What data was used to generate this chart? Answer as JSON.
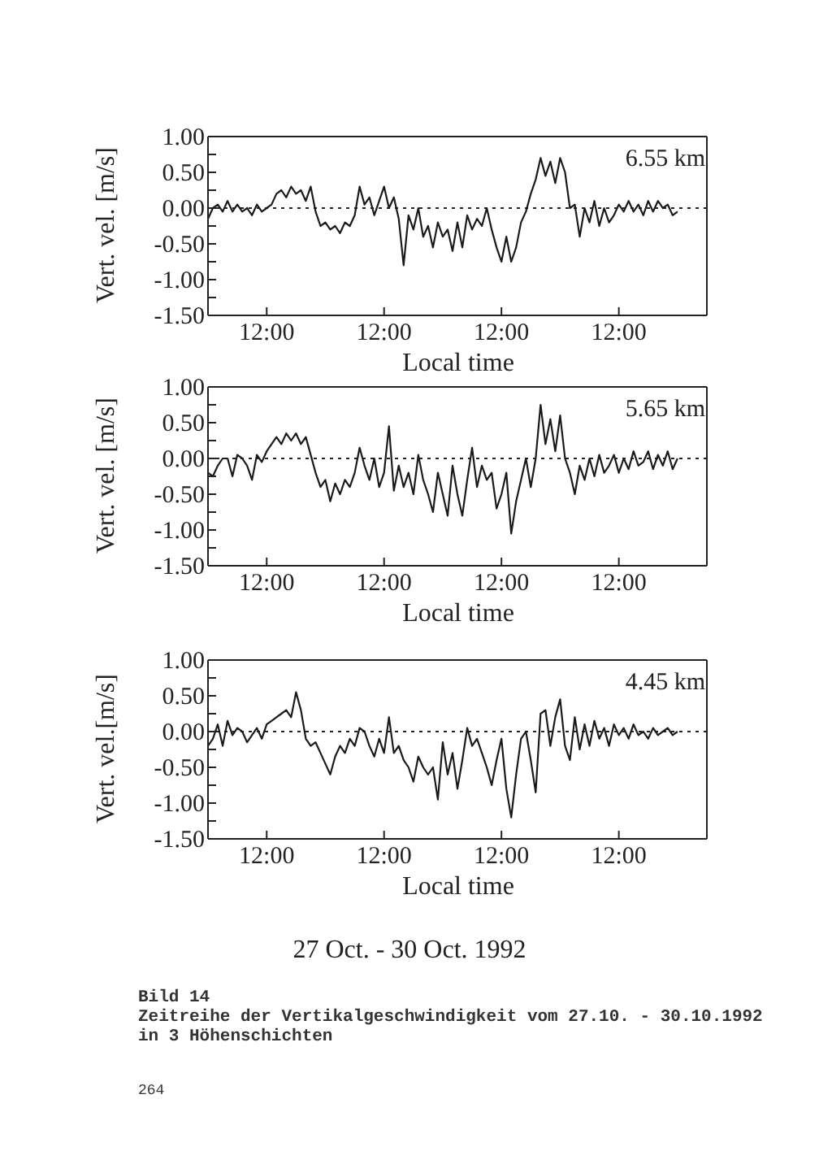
{
  "chart_data": [
    {
      "type": "line",
      "xlabel": "Local time",
      "ylabel": "Vert. vel. [m/s]",
      "annotations": [
        "6.55 km"
      ],
      "categories": [
        null,
        null,
        null,
        null,
        null,
        null,
        null,
        null,
        null,
        null,
        null,
        null,
        "12:00",
        null,
        null,
        null,
        null,
        null,
        null,
        null,
        null,
        null,
        null,
        null,
        null,
        null,
        null,
        null,
        null,
        null,
        null,
        null,
        null,
        null,
        null,
        null,
        "12:00",
        null,
        null,
        null,
        null,
        null,
        null,
        null,
        null,
        null,
        null,
        null,
        null,
        null,
        null,
        null,
        null,
        null,
        null,
        null,
        null,
        null,
        null,
        null,
        "12:00",
        null,
        null,
        null,
        null,
        null,
        null,
        null,
        null,
        null,
        null,
        null,
        null,
        null,
        null,
        null,
        null,
        null,
        null,
        null,
        null,
        null,
        null,
        null,
        "12:00",
        null,
        null,
        null,
        null,
        null,
        null,
        null,
        null,
        null,
        null,
        null,
        null,
        null,
        null,
        null,
        null,
        null,
        null
      ],
      "ylim": [
        -1.5,
        1.0
      ],
      "yticks": [
        {
          "value": 1.0,
          "label": "1.00"
        },
        {
          "value": 0.75,
          "label": null
        },
        {
          "value": 0.5,
          "label": "0.50"
        },
        {
          "value": 0.25,
          "label": null
        },
        {
          "value": 0,
          "label": "0.00"
        },
        {
          "value": -0.25,
          "label": null
        },
        {
          "value": -0.5,
          "label": "-0.50"
        },
        {
          "value": -0.75,
          "label": null
        },
        {
          "value": -1.0,
          "label": "-1.00"
        },
        {
          "value": -1.25,
          "label": null
        },
        {
          "value": -1.5,
          "label": "-1.50"
        }
      ],
      "ref_lines": [
        {
          "axis": "y",
          "value": 0,
          "line_style": "dotted",
          "color": "#222222"
        }
      ],
      "series": [
        {
          "color": "#1a1a1a",
          "values": [
            -0.15,
            0.0,
            0.05,
            -0.05,
            0.1,
            -0.05,
            0.05,
            -0.05,
            0.0,
            -0.1,
            0.05,
            -0.05,
            0.0,
            0.05,
            0.2,
            0.25,
            0.15,
            0.3,
            0.2,
            0.25,
            0.1,
            0.3,
            -0.05,
            -0.25,
            -0.2,
            -0.3,
            -0.25,
            -0.35,
            -0.2,
            -0.25,
            -0.1,
            0.3,
            0.05,
            0.15,
            -0.1,
            0.1,
            0.3,
            0.0,
            0.15,
            -0.15,
            -0.8,
            -0.1,
            -0.3,
            0.0,
            -0.4,
            -0.25,
            -0.55,
            -0.2,
            -0.4,
            -0.3,
            -0.6,
            -0.2,
            -0.55,
            -0.1,
            -0.3,
            -0.15,
            -0.25,
            0.0,
            -0.3,
            -0.55,
            -0.75,
            -0.4,
            -0.75,
            -0.55,
            -0.2,
            -0.05,
            0.2,
            0.4,
            0.7,
            0.45,
            0.65,
            0.35,
            0.7,
            0.5,
            0.0,
            0.05,
            -0.4,
            0.0,
            -0.2,
            0.1,
            -0.25,
            0.0,
            -0.2,
            -0.1,
            0.05,
            -0.05,
            0.1,
            -0.05,
            0.05,
            -0.1,
            0.1,
            -0.05,
            0.1,
            0.0,
            0.05,
            -0.1,
            -0.05,
            null,
            null,
            null,
            null,
            null,
            null
          ]
        }
      ]
    },
    {
      "type": "line",
      "xlabel": "Local time",
      "ylabel": "Vert. vel. [m/s]",
      "annotations": [
        "5.65 km"
      ],
      "categories": [
        null,
        null,
        null,
        null,
        null,
        null,
        null,
        null,
        null,
        null,
        null,
        null,
        "12:00",
        null,
        null,
        null,
        null,
        null,
        null,
        null,
        null,
        null,
        null,
        null,
        null,
        null,
        null,
        null,
        null,
        null,
        null,
        null,
        null,
        null,
        null,
        null,
        "12:00",
        null,
        null,
        null,
        null,
        null,
        null,
        null,
        null,
        null,
        null,
        null,
        null,
        null,
        null,
        null,
        null,
        null,
        null,
        null,
        null,
        null,
        null,
        null,
        "12:00",
        null,
        null,
        null,
        null,
        null,
        null,
        null,
        null,
        null,
        null,
        null,
        null,
        null,
        null,
        null,
        null,
        null,
        null,
        null,
        null,
        null,
        null,
        null,
        "12:00",
        null,
        null,
        null,
        null,
        null,
        null,
        null,
        null,
        null,
        null,
        null,
        null,
        null,
        null,
        null,
        null,
        null,
        null
      ],
      "ylim": [
        -1.5,
        1.0
      ],
      "yticks": [
        {
          "value": 1.0,
          "label": "1.00"
        },
        {
          "value": 0.75,
          "label": null
        },
        {
          "value": 0.5,
          "label": "0.50"
        },
        {
          "value": 0.25,
          "label": null
        },
        {
          "value": 0,
          "label": "0.00"
        },
        {
          "value": -0.25,
          "label": null
        },
        {
          "value": -0.5,
          "label": "-0.50"
        },
        {
          "value": -0.75,
          "label": null
        },
        {
          "value": -1.0,
          "label": "-1.00"
        },
        {
          "value": -1.25,
          "label": null
        },
        {
          "value": -1.5,
          "label": "-1.50"
        }
      ],
      "ref_lines": [
        {
          "axis": "y",
          "value": 0,
          "line_style": "dotted",
          "color": "#222222"
        }
      ],
      "series": [
        {
          "color": "#1a1a1a",
          "values": [
            -0.2,
            -0.25,
            -0.1,
            0.0,
            0.0,
            -0.25,
            0.05,
            0.0,
            -0.1,
            -0.3,
            0.05,
            -0.05,
            0.1,
            0.2,
            0.3,
            0.2,
            0.35,
            0.25,
            0.35,
            0.2,
            0.3,
            0.05,
            -0.2,
            -0.4,
            -0.3,
            -0.6,
            -0.35,
            -0.5,
            -0.3,
            -0.4,
            -0.2,
            0.15,
            -0.1,
            -0.3,
            0.0,
            -0.4,
            -0.2,
            0.45,
            -0.45,
            -0.1,
            -0.4,
            -0.2,
            -0.5,
            0.05,
            -0.3,
            -0.5,
            -0.75,
            -0.2,
            -0.5,
            -0.8,
            -0.1,
            -0.5,
            -0.8,
            -0.3,
            0.15,
            -0.4,
            -0.1,
            -0.3,
            -0.2,
            -0.7,
            -0.5,
            -0.2,
            -1.05,
            -0.6,
            -0.3,
            0.0,
            -0.4,
            0.0,
            0.75,
            0.2,
            0.55,
            0.1,
            0.6,
            0.0,
            -0.2,
            -0.5,
            -0.1,
            -0.3,
            0.0,
            -0.25,
            0.05,
            -0.2,
            -0.1,
            0.05,
            -0.2,
            0.0,
            -0.15,
            0.1,
            -0.1,
            -0.05,
            0.1,
            -0.15,
            0.05,
            -0.1,
            0.1,
            -0.15,
            0.0,
            null,
            null,
            null,
            null,
            null,
            null
          ]
        }
      ]
    },
    {
      "type": "line",
      "xlabel": "Local time",
      "ylabel": "Vert. vel.[m/s]",
      "annotations": [
        "4.45 km",
        "27 Oct. - 30 Oct. 1992",
        "Bild 14",
        "Zeitreihe der Vertikalgeschwindigkeit vom 27.10. - 30.10.1992",
        "in 3 Höhenschichten",
        "264"
      ],
      "categories": [
        null,
        null,
        null,
        null,
        null,
        null,
        null,
        null,
        null,
        null,
        null,
        null,
        "12:00",
        null,
        null,
        null,
        null,
        null,
        null,
        null,
        null,
        null,
        null,
        null,
        null,
        null,
        null,
        null,
        null,
        null,
        null,
        null,
        null,
        null,
        null,
        null,
        "12:00",
        null,
        null,
        null,
        null,
        null,
        null,
        null,
        null,
        null,
        null,
        null,
        null,
        null,
        null,
        null,
        null,
        null,
        null,
        null,
        null,
        null,
        null,
        null,
        "12:00",
        null,
        null,
        null,
        null,
        null,
        null,
        null,
        null,
        null,
        null,
        null,
        null,
        null,
        null,
        null,
        null,
        null,
        null,
        null,
        null,
        null,
        null,
        null,
        "12:00",
        null,
        null,
        null,
        null,
        null,
        null,
        null,
        null,
        null,
        null,
        null,
        null,
        null,
        null,
        null,
        null,
        null,
        null
      ],
      "ylim": [
        -1.5,
        1.0
      ],
      "yticks": [
        {
          "value": 1.0,
          "label": "1.00"
        },
        {
          "value": 0.75,
          "label": null
        },
        {
          "value": 0.5,
          "label": "0.50"
        },
        {
          "value": 0.25,
          "label": null
        },
        {
          "value": 0,
          "label": "0.00"
        },
        {
          "value": -0.25,
          "label": null
        },
        {
          "value": -0.5,
          "label": "-0.50"
        },
        {
          "value": -0.75,
          "label": null
        },
        {
          "value": -1.0,
          "label": "-1.00"
        },
        {
          "value": -1.25,
          "label": null
        },
        {
          "value": -1.5,
          "label": "-1.50"
        }
      ],
      "ref_lines": [
        {
          "axis": "y",
          "value": 0,
          "line_style": "dotted",
          "color": "#222222"
        }
      ],
      "series": [
        {
          "color": "#1a1a1a",
          "values": [
            -0.2,
            -0.1,
            0.1,
            -0.2,
            0.15,
            -0.05,
            0.05,
            0.0,
            -0.15,
            -0.05,
            0.05,
            -0.1,
            0.1,
            0.15,
            0.2,
            0.25,
            0.3,
            0.2,
            0.55,
            0.3,
            -0.1,
            -0.2,
            -0.15,
            -0.3,
            -0.45,
            -0.6,
            -0.35,
            -0.2,
            -0.3,
            -0.1,
            -0.2,
            0.05,
            0.0,
            -0.2,
            -0.35,
            -0.1,
            -0.3,
            0.2,
            -0.3,
            -0.2,
            -0.4,
            -0.5,
            -0.7,
            -0.35,
            -0.5,
            -0.6,
            -0.5,
            -0.95,
            -0.15,
            -0.6,
            -0.3,
            -0.8,
            -0.4,
            0.05,
            -0.2,
            -0.1,
            -0.3,
            -0.5,
            -0.75,
            -0.4,
            -0.1,
            -0.8,
            -1.2,
            -0.6,
            -0.1,
            0.0,
            -0.4,
            -0.85,
            0.25,
            0.3,
            -0.2,
            0.2,
            0.45,
            -0.2,
            -0.4,
            0.2,
            -0.25,
            0.1,
            -0.2,
            0.15,
            -0.1,
            0.05,
            -0.2,
            0.1,
            -0.05,
            0.05,
            -0.1,
            0.1,
            -0.05,
            0.0,
            -0.1,
            0.05,
            -0.05,
            0.0,
            0.05,
            -0.05,
            0.0,
            null,
            null,
            null,
            null,
            null,
            null
          ]
        }
      ]
    }
  ]
}
